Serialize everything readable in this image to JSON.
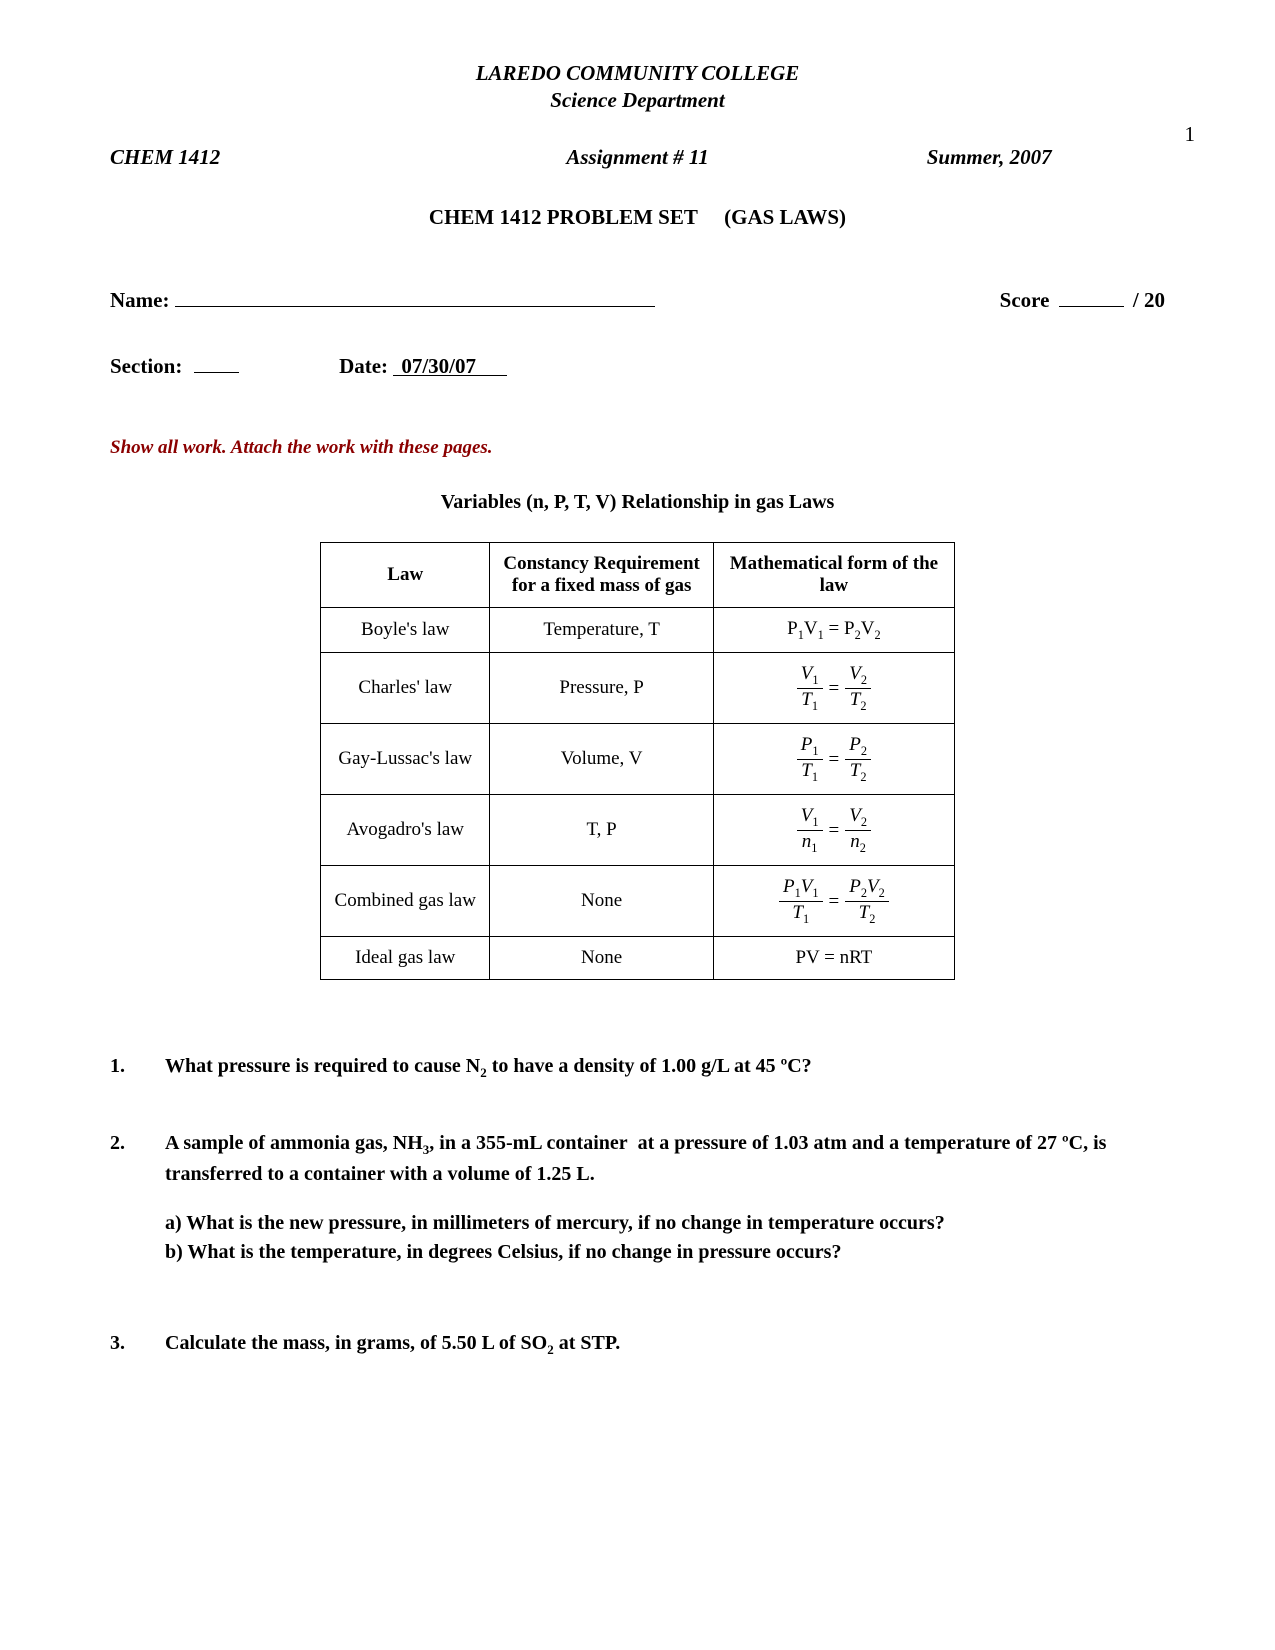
{
  "header": {
    "institution": "LAREDO COMMUNITY COLLEGE",
    "department": "Science Department",
    "course": "CHEM 1412",
    "assignment": "Assignment # 11",
    "term": "Summer, 2007",
    "page_number": "1",
    "problem_set_title": "CHEM 1412 PROBLEM SET     (GAS LAWS)"
  },
  "form": {
    "name_label": "Name:",
    "score_label": "Score",
    "score_max": "/ 20",
    "section_label": "Section:",
    "date_label": "Date:",
    "date_value": "07/30/07"
  },
  "instruction": "Show all work. Attach the work with these pages.",
  "table": {
    "title": "Variables (n, P, T, V) Relationship in gas Laws",
    "columns": [
      "Law",
      "Constancy Requirement for a fixed mass of gas",
      "Mathematical form of the law"
    ],
    "rows": [
      {
        "law": "Boyle's law",
        "constancy": "Temperature, T",
        "formula_type": "inline",
        "formula_html": "P<sub>1</sub>V<sub>1</sub> = P<sub>2</sub>V<sub>2</sub>"
      },
      {
        "law": "Charles' law",
        "constancy": "Pressure, P",
        "formula_type": "frac",
        "n1": "V<sub>1</sub>",
        "d1": "T<sub>1</sub>",
        "n2": "V<sub>2</sub>",
        "d2": "T<sub>2</sub>"
      },
      {
        "law": "Gay-Lussac's law",
        "constancy": "Volume, V",
        "formula_type": "frac",
        "n1": "P<sub>1</sub>",
        "d1": "T<sub>1</sub>",
        "n2": "P<sub>2</sub>",
        "d2": "T<sub>2</sub>"
      },
      {
        "law": "Avogadro's law",
        "constancy": "T, P",
        "formula_type": "frac",
        "n1": "V<sub>1</sub>",
        "d1": "n<sub>1</sub>",
        "n2": "V<sub>2</sub>",
        "d2": "n<sub>2</sub>"
      },
      {
        "law": "Combined gas law",
        "constancy": "None",
        "formula_type": "frac",
        "n1": "P<sub>1</sub>V<sub>1</sub>",
        "d1": "T<sub>1</sub>",
        "n2": "P<sub>2</sub>V<sub>2</sub>",
        "d2": "T<sub>2</sub>"
      },
      {
        "law": "Ideal gas law",
        "constancy": "None",
        "formula_type": "inline",
        "formula_html": "PV = nRT"
      }
    ]
  },
  "questions": [
    {
      "num": "1.",
      "html": "What pressure is required to cause N<sub>2</sub> to have a density of 1.00 g/L at 45 ºC?"
    },
    {
      "num": "2.",
      "html": "A sample of ammonia gas, NH<sub>3</sub>, in a 355-mL container  at a pressure of 1.03 atm and a temperature of 27 ºC, is transferred to a container with a volume of 1.25 L.",
      "parts": [
        "a) What is the new pressure, in millimeters of mercury, if no change in temperature occurs?",
        "b) What is the temperature, in degrees Celsius, if no change in pressure occurs?"
      ]
    },
    {
      "num": "3.",
      "html": "Calculate the mass, in grams, of 5.50 L of SO<sub>2</sub> at STP."
    }
  ]
}
